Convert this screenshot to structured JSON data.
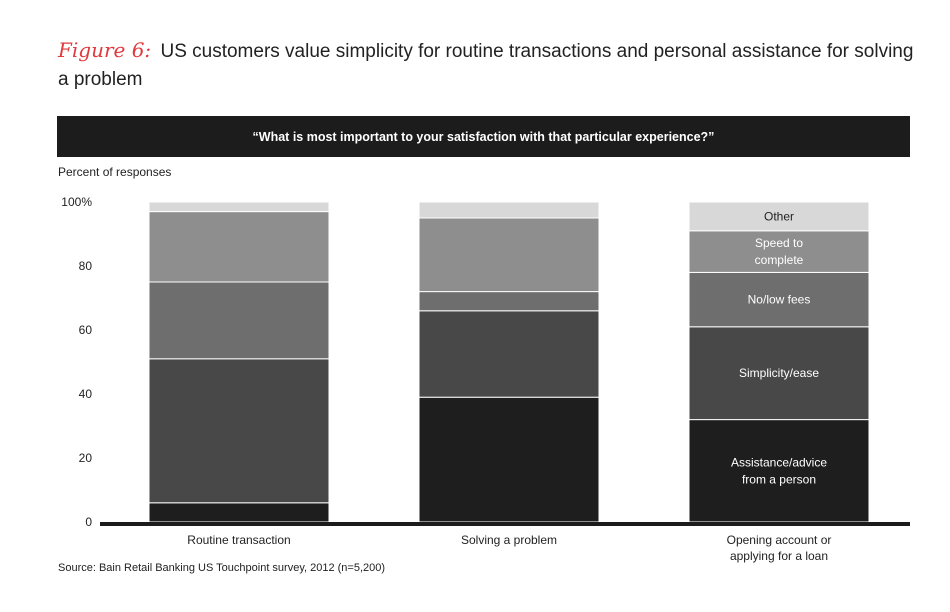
{
  "figure": {
    "label": "Figure 6:",
    "title": "US customers value simplicity for routine transactions and personal assistance for solving a problem"
  },
  "question": "“What is most important to your satisfaction with that particular experience?”",
  "source": "Source: Bain Retail Banking US Touchpoint survey, 2012 (n=5,200)",
  "chart_data": {
    "type": "bar",
    "stacked": true,
    "ylabel": "Percent of responses",
    "ylim": [
      0,
      100
    ],
    "yticks": [
      "0",
      "20",
      "40",
      "60",
      "80",
      "100%"
    ],
    "categories": [
      "Routine transaction",
      "Solving a problem",
      "Opening account or applying for a loan"
    ],
    "category_lines": [
      [
        "Routine transaction"
      ],
      [
        "Solving a problem"
      ],
      [
        "Opening account or",
        "applying for a loan"
      ]
    ],
    "series": [
      {
        "name": "Assistance/advice from a person",
        "label_lines": [
          "Assistance/advice",
          "from a person"
        ],
        "color": "#1e1e1e",
        "values": [
          6,
          39,
          32
        ]
      },
      {
        "name": "Simplicity/ease",
        "label_lines": [
          "Simplicity/ease"
        ],
        "color": "#484848",
        "values": [
          45,
          27,
          29
        ]
      },
      {
        "name": "No/low fees",
        "label_lines": [
          "No/low fees"
        ],
        "color": "#6e6e6e",
        "values": [
          24,
          6,
          17
        ]
      },
      {
        "name": "Speed to complete",
        "label_lines": [
          "Speed to",
          "complete"
        ],
        "color": "#8e8e8e",
        "values": [
          22,
          23,
          13
        ]
      },
      {
        "name": "Other",
        "label_lines": [
          "Other"
        ],
        "color": "#d8d8d8",
        "values": [
          3,
          5,
          9
        ]
      }
    ],
    "labeled_bar_index": 2,
    "grid": false
  }
}
